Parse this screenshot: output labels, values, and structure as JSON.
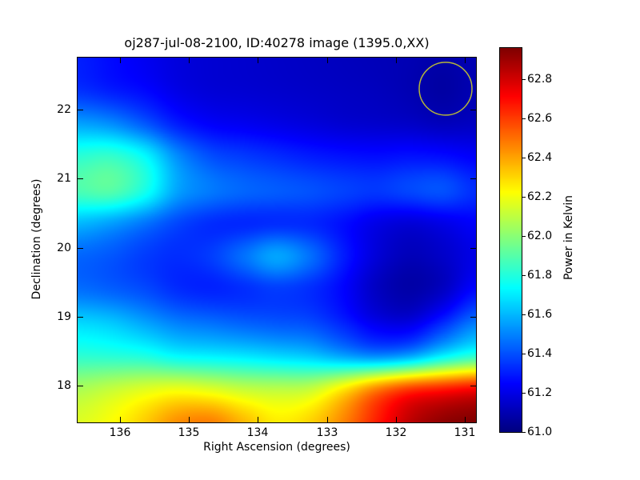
{
  "chart_data": {
    "type": "heatmap",
    "title": "oj287-jul-08-2100, ID:40278 image (1395.0,XX)",
    "xlabel": "Right Ascension (degrees)",
    "ylabel": "Declination (degrees)",
    "colorbar_label": "Power in Kelvin",
    "colormap": "jet",
    "vmin": 61.0,
    "vmax": 62.96,
    "x_extent": [
      136.61,
      130.84
    ],
    "y_extent": [
      17.47,
      22.75
    ],
    "xticks": [
      136,
      135,
      134,
      133,
      132,
      131
    ],
    "yticks": [
      22,
      21,
      20,
      19,
      18
    ],
    "colorbar_ticks": [
      62.8,
      62.6,
      62.4,
      62.2,
      62.0,
      61.8,
      61.6,
      61.4,
      61.2,
      61.0
    ],
    "beam_circle": {
      "ra": 131.28,
      "dec": 22.3,
      "radius_px": 33,
      "color": "#b5b53a"
    },
    "grid": {
      "ra": [
        136.61,
        136.13,
        135.65,
        135.17,
        134.69,
        134.21,
        133.73,
        133.24,
        132.76,
        132.28,
        131.8,
        131.32,
        130.84
      ],
      "dec": [
        22.75,
        22.27,
        21.79,
        21.31,
        20.83,
        20.35,
        19.87,
        19.39,
        18.91,
        18.43,
        17.95,
        17.47
      ],
      "values_kelvin": [
        [
          61.3,
          61.26,
          61.22,
          61.18,
          61.16,
          61.15,
          61.14,
          61.13,
          61.12,
          61.11,
          61.1,
          61.08,
          61.1
        ],
        [
          61.34,
          61.3,
          61.26,
          61.2,
          61.17,
          61.16,
          61.15,
          61.14,
          61.13,
          61.12,
          61.1,
          61.07,
          61.1
        ],
        [
          61.56,
          61.52,
          61.42,
          61.3,
          61.24,
          61.22,
          61.2,
          61.18,
          61.16,
          61.15,
          61.14,
          61.12,
          61.13
        ],
        [
          61.82,
          61.84,
          61.74,
          61.52,
          61.4,
          61.36,
          61.33,
          61.3,
          61.28,
          61.27,
          61.28,
          61.27,
          61.24
        ],
        [
          61.88,
          61.9,
          61.78,
          61.56,
          61.48,
          61.44,
          61.42,
          61.4,
          61.37,
          61.35,
          61.38,
          61.4,
          61.33
        ],
        [
          61.6,
          61.55,
          61.47,
          61.38,
          61.33,
          61.32,
          61.33,
          61.32,
          61.27,
          61.2,
          61.17,
          61.2,
          61.24
        ],
        [
          61.44,
          61.41,
          61.36,
          61.33,
          61.36,
          61.46,
          61.56,
          61.46,
          61.3,
          61.17,
          61.11,
          61.14,
          61.2
        ],
        [
          61.46,
          61.43,
          61.39,
          61.33,
          61.31,
          61.33,
          61.36,
          61.33,
          61.25,
          61.13,
          61.08,
          61.13,
          61.26
        ],
        [
          61.66,
          61.63,
          61.56,
          61.49,
          61.46,
          61.43,
          61.41,
          61.39,
          61.31,
          61.21,
          61.19,
          61.32,
          61.48
        ],
        [
          61.82,
          61.81,
          61.79,
          61.73,
          61.71,
          61.69,
          61.66,
          61.63,
          61.56,
          61.51,
          61.56,
          61.71,
          61.82
        ],
        [
          62.06,
          62.11,
          62.16,
          62.19,
          62.16,
          62.11,
          62.09,
          62.11,
          62.26,
          62.46,
          62.6,
          62.66,
          62.71
        ],
        [
          62.16,
          62.22,
          62.32,
          62.44,
          62.47,
          62.36,
          62.26,
          62.31,
          62.46,
          62.66,
          62.84,
          62.93,
          62.96
        ]
      ]
    }
  }
}
